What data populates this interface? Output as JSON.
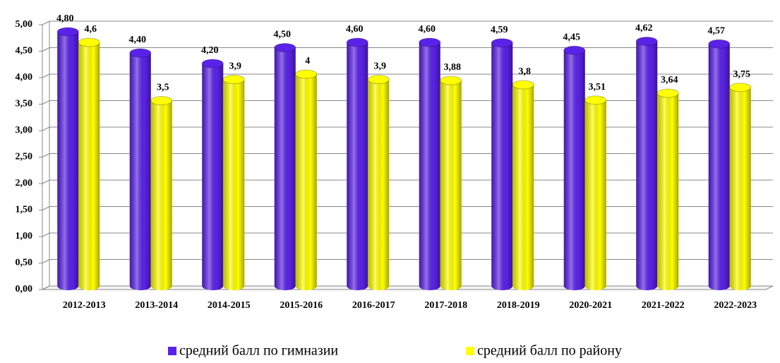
{
  "chart_data": {
    "type": "bar",
    "categories": [
      "2012-2013",
      "2013-2014",
      "2014-2015",
      "2015-2016",
      "2016-2017",
      "2017-2018",
      "2018-2019",
      "2020-2021",
      "2021-2022",
      "2022-2023"
    ],
    "series": [
      {
        "name": "средний балл по гимназии",
        "color": "#5a22e8",
        "values": [
          4.8,
          4.4,
          4.2,
          4.5,
          4.6,
          4.6,
          4.59,
          4.45,
          4.62,
          4.57
        ],
        "value_labels": [
          "4,80",
          "4,40",
          "4,20",
          "4,50",
          "4,60",
          "4,60",
          "4,59",
          "4,45",
          "4,62",
          "4,57"
        ]
      },
      {
        "name": "средний балл по району",
        "color": "#ffff00",
        "values": [
          4.6,
          3.5,
          3.9,
          4,
          3.9,
          3.88,
          3.8,
          3.51,
          3.64,
          3.75
        ],
        "value_labels": [
          "4,6",
          "3,5",
          "3,9",
          "4",
          "3,9",
          "3,88",
          "3,8",
          "3,51",
          "3,64",
          "3,75"
        ]
      }
    ],
    "ylim": [
      0,
      5
    ],
    "yticks": [
      {
        "value": 0,
        "label": "0,00"
      },
      {
        "value": 0.5,
        "label": "0,50"
      },
      {
        "value": 1,
        "label": "1,00"
      },
      {
        "value": 1.5,
        "label": "1,50"
      },
      {
        "value": 2,
        "label": "2,00"
      },
      {
        "value": 2.5,
        "label": "2,50"
      },
      {
        "value": 3,
        "label": "3,00"
      },
      {
        "value": 3.5,
        "label": "3,50"
      },
      {
        "value": 4,
        "label": "4,00"
      },
      {
        "value": 4.5,
        "label": "4,50"
      },
      {
        "value": 5,
        "label": "5,00"
      }
    ],
    "grid": true,
    "legend": "bottom"
  }
}
